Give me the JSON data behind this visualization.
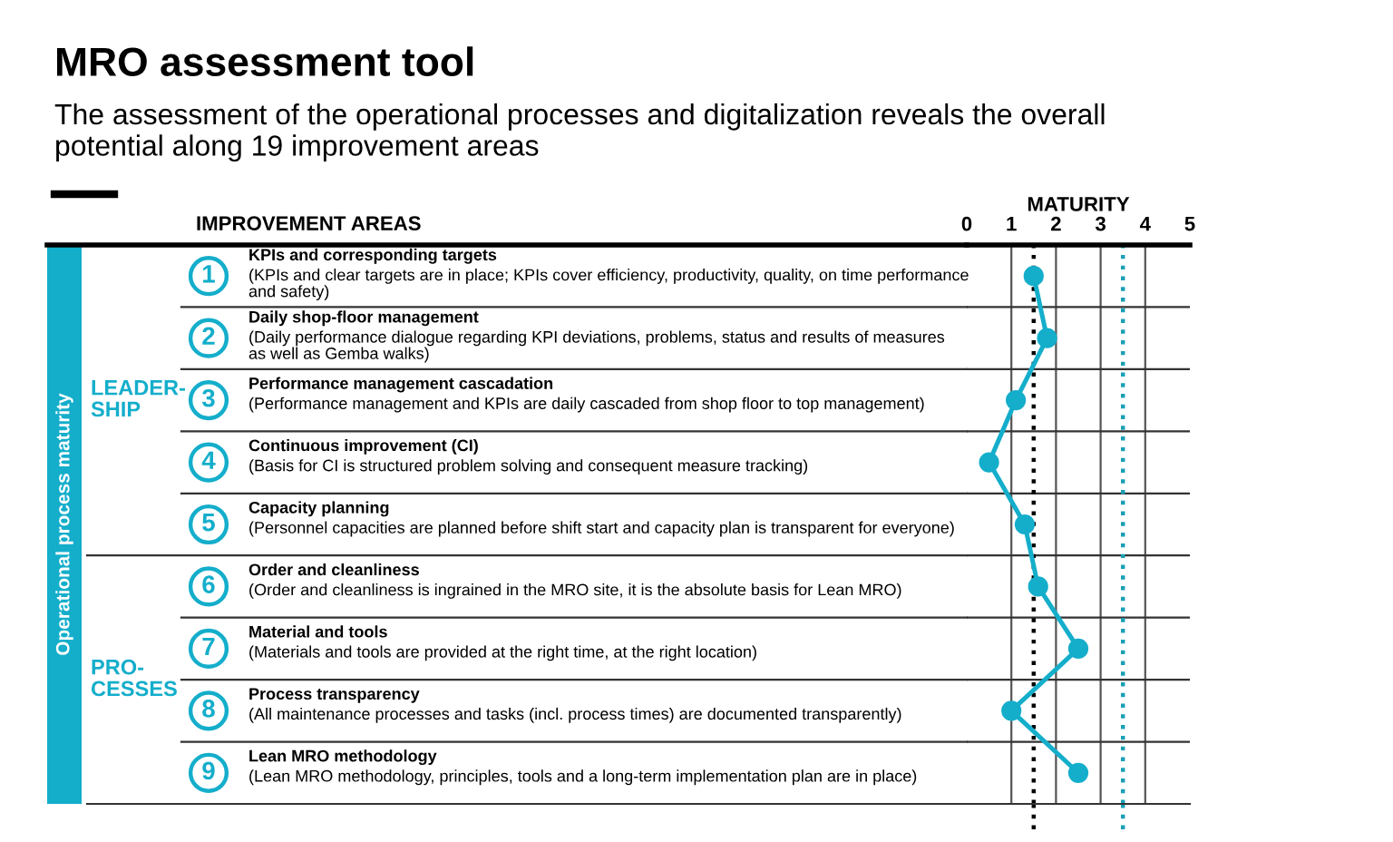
{
  "chart_data": {
    "type": "line",
    "orientation": "horizontal",
    "title": "MRO assessment tool",
    "subtitle": "The assessment of the operational processes and digitalization reveals the overall\npotential along 19 improvement areas",
    "xlabel": "MATURITY",
    "ylabel": "IMPROVEMENT AREAS",
    "categories": [
      "KPIs and corresponding targets\n(KPIs and clear targets are in place; KPIs cover efficiency, productivity, quality, on time performance\nand safety)",
      "Daily shop-floor management\n(Daily performance dialogue regarding KPI deviations, problems, status and results of measures\nas well as Gemba walks)",
      "Performance management cascadation\n(Performance management and KPIs are daily cascaded from shop floor to top management)",
      "Continuous improvement (CI)\n(Basis for CI is structured problem solving and consequent measure tracking)",
      "Capacity planning\n(Personnel capacities are planned before shift start and capacity plan is transparent for everyone)",
      "Order and cleanliness\n(Order and cleanliness is ingrained in the MRO site, it is the absolute basis for Lean MRO)",
      "Material and tools\n(Materials and tools are provided at the right time, at the right location)",
      "Process transparency\n(All maintenance processes and tasks (incl. process times) are documented transparently)",
      "Lean MRO methodology\n(Lean MRO methodology, principles, tools and a long-term implementation plan are in place)"
    ],
    "series": [
      {
        "color": "#14aecb",
        "values": [
          1.5,
          1.8,
          1.1,
          0.5,
          1.3,
          1.6,
          2.5,
          1.0,
          2.5
        ]
      }
    ],
    "xlim": [
      0,
      5
    ],
    "xticks": [
      0,
      1,
      2,
      3,
      4,
      5
    ],
    "grid": "x",
    "marker": "circle",
    "line_style": "solid",
    "ref_lines": [
      {
        "axis": "x",
        "value": 1.5,
        "color": "#000000",
        "line_style": "dotted"
      },
      {
        "axis": "x",
        "value": 3.5,
        "color": "#1a9fb5",
        "line_style": "dotted"
      }
    ],
    "annotations": [
      "1",
      "2",
      "3",
      "4",
      "5",
      "6",
      "7",
      "8",
      "9",
      "LEADER-\nSHIP",
      "PRO-\nCESSES",
      "Operational process maturity"
    ]
  }
}
